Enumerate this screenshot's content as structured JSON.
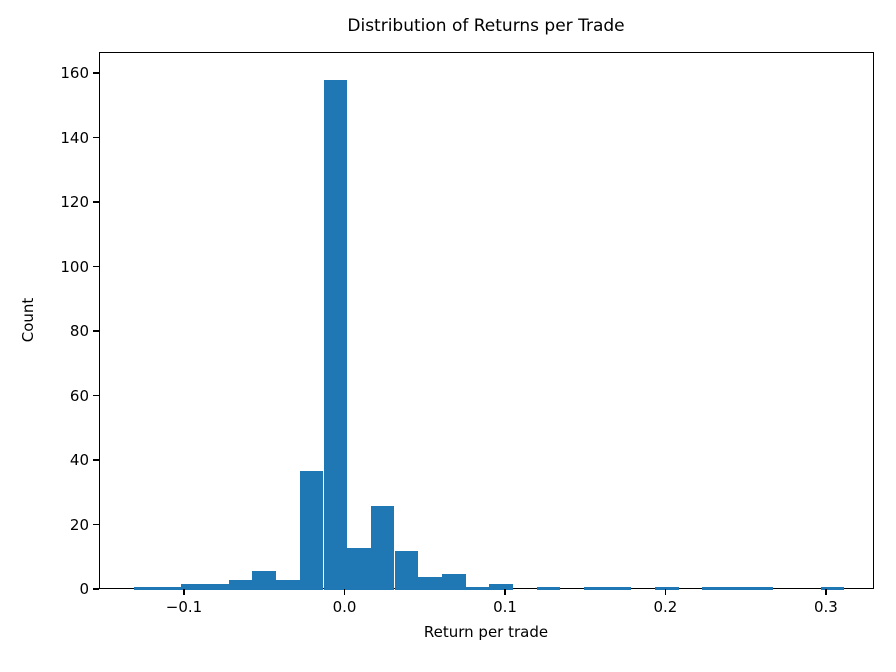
{
  "chart_data": {
    "type": "bar",
    "subtype": "histogram",
    "title": "Distribution of Returns per Trade",
    "xlabel": "Return per trade",
    "ylabel": "Count",
    "bar_color": "#1f77b4",
    "axis_color": "#000000",
    "background_color": "#ffffff",
    "grid": false,
    "legend": null,
    "bin_start": -0.1318,
    "bin_width": 0.01476,
    "counts": [
      1,
      1,
      2,
      2,
      3,
      6,
      3,
      37,
      158,
      13,
      26,
      12,
      4,
      5,
      1,
      2,
      0,
      1,
      0,
      1,
      1,
      0,
      1,
      0,
      1,
      1,
      1,
      0,
      0,
      1
    ],
    "total_count": 284,
    "xlim": [
      -0.153,
      0.33
    ],
    "ylim": [
      0,
      166.5
    ],
    "xticks": [
      {
        "value": -0.1,
        "label": "−0.1"
      },
      {
        "value": 0.0,
        "label": "0.0"
      },
      {
        "value": 0.1,
        "label": "0.1"
      },
      {
        "value": 0.2,
        "label": "0.2"
      },
      {
        "value": 0.3,
        "label": "0.3"
      }
    ],
    "yticks": [
      {
        "value": 0,
        "label": "0"
      },
      {
        "value": 20,
        "label": "20"
      },
      {
        "value": 40,
        "label": "40"
      },
      {
        "value": 60,
        "label": "60"
      },
      {
        "value": 80,
        "label": "80"
      },
      {
        "value": 100,
        "label": "100"
      },
      {
        "value": 120,
        "label": "120"
      },
      {
        "value": 140,
        "label": "140"
      },
      {
        "value": 160,
        "label": "160"
      }
    ]
  }
}
